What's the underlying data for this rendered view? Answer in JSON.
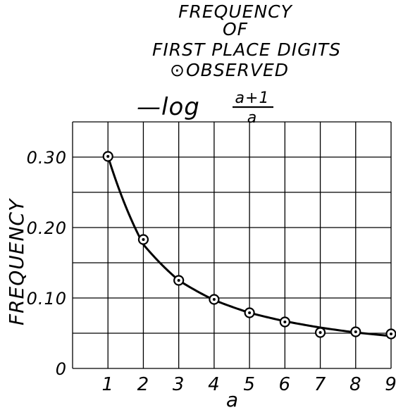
{
  "chart_data": {
    "type": "line",
    "title_lines": [
      "FREQUENCY",
      "OF",
      "FIRST PLACE DIGITS"
    ],
    "legend": {
      "observed_symbol": "⊙",
      "observed_label": "OBSERVED",
      "curve_prefix": "—log",
      "curve_numerator": "a+1",
      "curve_denominator": "a"
    },
    "xlabel": "a",
    "ylabel": "FREQUENCY",
    "x_ticks": [
      "1",
      "2",
      "3",
      "4",
      "5",
      "6",
      "7",
      "8",
      "9"
    ],
    "y_ticks": [
      "0",
      "0.10",
      "0.20",
      "0.30"
    ],
    "xlim": [
      0,
      9
    ],
    "ylim": [
      0,
      0.35
    ],
    "grid": true,
    "series": [
      {
        "kind": "observed",
        "x": [
          1,
          2,
          3,
          4,
          5,
          6,
          7,
          8,
          9
        ],
        "values": [
          0.301,
          0.183,
          0.125,
          0.098,
          0.079,
          0.066,
          0.051,
          0.052,
          0.049
        ]
      },
      {
        "kind": "curve",
        "formula": "log10((a+1)/a)",
        "x": [
          1,
          2,
          3,
          4,
          5,
          6,
          7,
          8,
          9
        ],
        "values": [
          0.301,
          0.176,
          0.125,
          0.097,
          0.079,
          0.067,
          0.058,
          0.051,
          0.046
        ]
      }
    ]
  }
}
